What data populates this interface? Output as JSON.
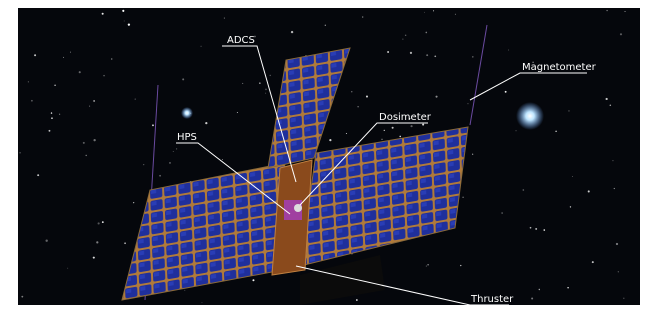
{
  "labels": {
    "adcs": "ADCS",
    "magnetometer": "Magnetometer",
    "dosimeter": "Dosimeter",
    "hps": "HPS",
    "thruster": "Thruster"
  }
}
